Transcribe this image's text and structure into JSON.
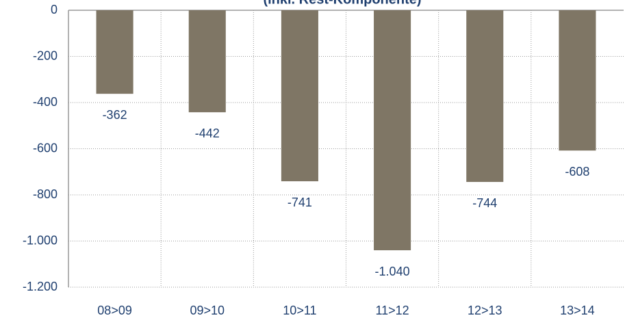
{
  "chart_data": {
    "type": "bar",
    "title": "(inkl. Rest-Komponente)",
    "categories": [
      "08>09",
      "09>10",
      "10>11",
      "11>12",
      "12>13",
      "13>14"
    ],
    "values": [
      -362,
      -442,
      -741,
      -1040,
      -744,
      -608
    ],
    "value_labels": [
      "-362",
      "-442",
      "-741",
      "-1.040",
      "-744",
      "-608"
    ],
    "color": "#7f7665",
    "ylim": [
      -1200,
      0
    ],
    "yticks": [
      0,
      -200,
      -400,
      -600,
      -800,
      {
        "value": -1000,
        "label": "-1.000"
      },
      {
        "value": -1200,
        "label": "-1.200"
      }
    ],
    "grid": true
  }
}
